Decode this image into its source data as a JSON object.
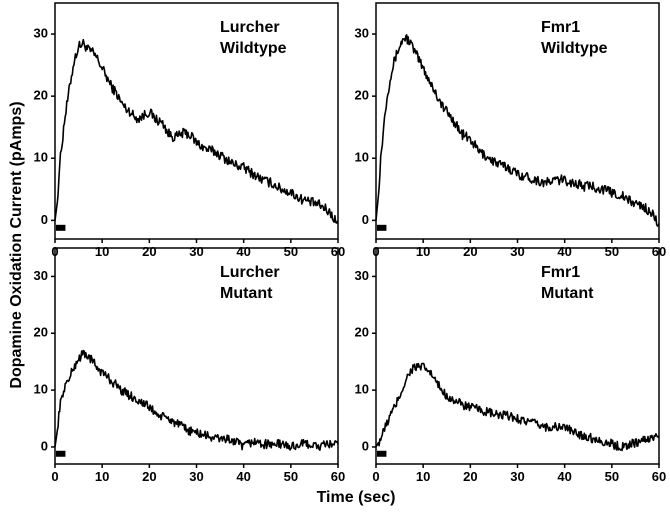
{
  "figure": {
    "xlabel": "Time (sec)",
    "ylabel": "Dopamine Oxidation Current (pAmps)"
  },
  "chart_data": [
    {
      "type": "line",
      "panel": "top-left",
      "label_line1": "Lurcher",
      "label_line2": "Wildtype",
      "xlim": [
        0,
        60
      ],
      "ylim": [
        -3,
        35
      ],
      "xticks": [
        0,
        10,
        20,
        30,
        40,
        50,
        60
      ],
      "yticks": [
        0,
        10,
        20,
        30
      ],
      "stimulus": [
        0,
        2
      ],
      "color": "#000000",
      "x": [
        0,
        0.5,
        1,
        2,
        3,
        4,
        5,
        6,
        7,
        8,
        9,
        10,
        11,
        12,
        13,
        14,
        15,
        16,
        17,
        18,
        19,
        20,
        21,
        22,
        23,
        24,
        25,
        26,
        27,
        28,
        29,
        30,
        32,
        34,
        36,
        38,
        40,
        42,
        44,
        46,
        48,
        50,
        52,
        54,
        56,
        58,
        59,
        60
      ],
      "y": [
        0,
        3,
        9,
        16,
        21,
        25.5,
        28,
        28.5,
        27.5,
        27,
        26,
        24.5,
        23,
        21.5,
        20.5,
        19,
        18,
        17.5,
        16.5,
        16.5,
        17,
        17.5,
        16.5,
        16,
        15.5,
        14,
        13.5,
        13.5,
        14,
        14,
        13.5,
        12.5,
        11.5,
        11,
        10,
        9,
        8.5,
        7.5,
        6.5,
        6,
        5,
        4.5,
        3.5,
        3,
        2.5,
        1.5,
        0.5,
        -0.5
      ]
    },
    {
      "type": "line",
      "panel": "top-right",
      "label_line1": "Fmr1",
      "label_line2": "Wildtype",
      "xlim": [
        0,
        60
      ],
      "ylim": [
        -3,
        35
      ],
      "xticks": [
        0,
        10,
        20,
        30,
        40,
        50,
        60
      ],
      "yticks": [
        0,
        10,
        20,
        30
      ],
      "stimulus": [
        0,
        2
      ],
      "color": "#000000",
      "x": [
        0,
        0.5,
        1,
        2,
        3,
        4,
        5,
        6,
        7,
        8,
        9,
        10,
        11,
        12,
        13,
        14,
        15,
        16,
        17,
        18,
        19,
        20,
        21,
        22,
        24,
        26,
        28,
        30,
        32,
        34,
        36,
        38,
        40,
        42,
        44,
        46,
        48,
        50,
        52,
        54,
        56,
        58,
        59,
        60
      ],
      "y": [
        0,
        4,
        10,
        18,
        23,
        26,
        28,
        29.5,
        29,
        27.5,
        26,
        24.5,
        23,
        21.5,
        20,
        18.5,
        17.5,
        16.5,
        15.5,
        14,
        13.5,
        13,
        12,
        11,
        10,
        9,
        8.5,
        7.5,
        7,
        6.5,
        6,
        6.5,
        6.5,
        6,
        5.5,
        5.5,
        5,
        4.5,
        4,
        3,
        2.5,
        1.5,
        0.5,
        -0.5
      ]
    },
    {
      "type": "line",
      "panel": "bottom-left",
      "label_line1": "Lurcher",
      "label_line2": "Mutant",
      "xlim": [
        0,
        60
      ],
      "ylim": [
        -3,
        35
      ],
      "xticks": [
        0,
        10,
        20,
        30,
        40,
        50,
        60
      ],
      "yticks": [
        0,
        10,
        20,
        30
      ],
      "stimulus": [
        0,
        2
      ],
      "color": "#000000",
      "x": [
        0,
        0.5,
        1,
        2,
        3,
        4,
        5,
        6,
        7,
        8,
        9,
        10,
        11,
        12,
        13,
        14,
        15,
        16,
        18,
        20,
        22,
        24,
        26,
        28,
        30,
        32,
        34,
        36,
        38,
        40,
        42,
        44,
        46,
        48,
        50,
        52,
        54,
        56,
        58,
        60
      ],
      "y": [
        0,
        3,
        7,
        10.5,
        12,
        14,
        15.5,
        16.5,
        16,
        15,
        14,
        13,
        12.5,
        11.5,
        11,
        10,
        9.5,
        9,
        8,
        7,
        5.5,
        5,
        4,
        3,
        2.5,
        2,
        1.5,
        1.5,
        1,
        0,
        1,
        0.5,
        0.5,
        0.5,
        0,
        0.5,
        0.5,
        0,
        0.5,
        0.5
      ]
    },
    {
      "type": "line",
      "panel": "bottom-right",
      "label_line1": "Fmr1",
      "label_line2": "Mutant",
      "xlim": [
        0,
        60
      ],
      "ylim": [
        -3,
        35
      ],
      "xticks": [
        0,
        10,
        20,
        30,
        40,
        50,
        60
      ],
      "yticks": [
        0,
        10,
        20,
        30
      ],
      "stimulus": [
        0,
        2
      ],
      "color": "#000000",
      "x": [
        0,
        1,
        2,
        3,
        4,
        5,
        6,
        7,
        8,
        9,
        10,
        11,
        12,
        13,
        14,
        15,
        16,
        18,
        20,
        22,
        24,
        26,
        28,
        30,
        32,
        34,
        36,
        38,
        40,
        42,
        44,
        46,
        48,
        50,
        52,
        54,
        56,
        58,
        60
      ],
      "y": [
        0,
        1.5,
        3.5,
        5.5,
        7,
        9,
        11,
        13,
        14,
        14,
        14,
        13.5,
        12.5,
        11,
        10,
        9,
        8.5,
        7.5,
        7,
        6.5,
        6,
        5.5,
        5.5,
        5,
        4.5,
        4,
        3.5,
        3.5,
        3.5,
        2.5,
        2,
        1.5,
        1,
        0.5,
        0,
        0.5,
        1,
        1.5,
        2
      ]
    }
  ]
}
